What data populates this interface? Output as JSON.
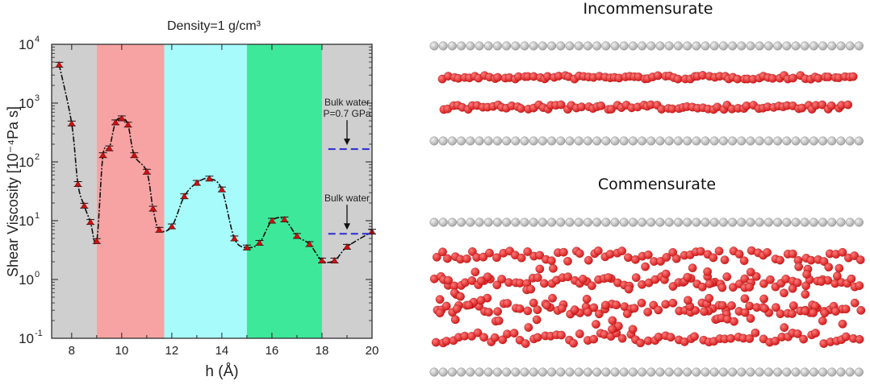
{
  "chart_data": {
    "type": "line",
    "title": "Density=1 g/cm³",
    "title_color": "#3a3ad8",
    "xlabel": "h (Å)",
    "ylabel": "Shear Viscosity [10⁻⁴Pa s]",
    "xlim": [
      7.2,
      20
    ],
    "ylim": [
      0.1,
      10000
    ],
    "y_scale": "log",
    "x_ticks": [
      8,
      10,
      12,
      14,
      16,
      18,
      20
    ],
    "y_ticks": [
      {
        "value": 0.1,
        "base": "10",
        "exp": "-1"
      },
      {
        "value": 1,
        "base": "10",
        "exp": "0"
      },
      {
        "value": 10,
        "base": "10",
        "exp": "1"
      },
      {
        "value": 100,
        "base": "10",
        "exp": "2"
      },
      {
        "value": 1000,
        "base": "10",
        "exp": "3"
      },
      {
        "value": 10000,
        "base": "10",
        "exp": "4"
      }
    ],
    "bands": [
      {
        "from": 7.2,
        "to": 9.0,
        "color": "#cfcfcf"
      },
      {
        "from": 9.0,
        "to": 11.7,
        "color": "#f7a3a3"
      },
      {
        "from": 11.7,
        "to": 15.0,
        "color": "#a8fbfb"
      },
      {
        "from": 15.0,
        "to": 18.0,
        "color": "#3ee89a"
      },
      {
        "from": 18.0,
        "to": 20.0,
        "color": "#cfcfcf"
      }
    ],
    "series": [
      {
        "color": "#cc1111",
        "x": [
          7.5,
          8.0,
          8.25,
          8.5,
          8.75,
          9.0,
          9.25,
          9.5,
          9.75,
          10.0,
          10.25,
          10.5,
          11.0,
          11.25,
          11.5,
          12.0,
          12.5,
          13.0,
          13.5,
          14.0,
          14.5,
          15.0,
          15.5,
          16.0,
          16.5,
          17.0,
          17.5,
          18.0,
          18.5,
          19.0,
          20.0
        ],
        "y": [
          4500,
          450,
          42,
          18,
          9.5,
          4.5,
          130,
          170,
          470,
          550,
          430,
          130,
          68,
          16,
          7.0,
          8.0,
          26,
          44,
          52,
          34,
          5.0,
          3.5,
          4.2,
          10,
          10.5,
          5.5,
          4.0,
          2.1,
          2.1,
          3.6,
          6.5
        ]
      }
    ],
    "annotations": [
      {
        "lines": [
          "Bulk water",
          "P=0.7 GPa"
        ],
        "value": 165,
        "arrow_color": "#111111",
        "line_color": "#2b2bd6"
      },
      {
        "lines": [
          "Bulk water"
        ],
        "value": 6.0,
        "arrow_color": "#111111",
        "line_color": "#2b2bd6"
      }
    ],
    "grid": false,
    "legend": "none"
  },
  "structure_panel": {
    "top_label": "Incommensurate",
    "bottom_label": "Commensurate",
    "wall_color": "#a7a7a7",
    "water_color": "#d41b1b"
  }
}
